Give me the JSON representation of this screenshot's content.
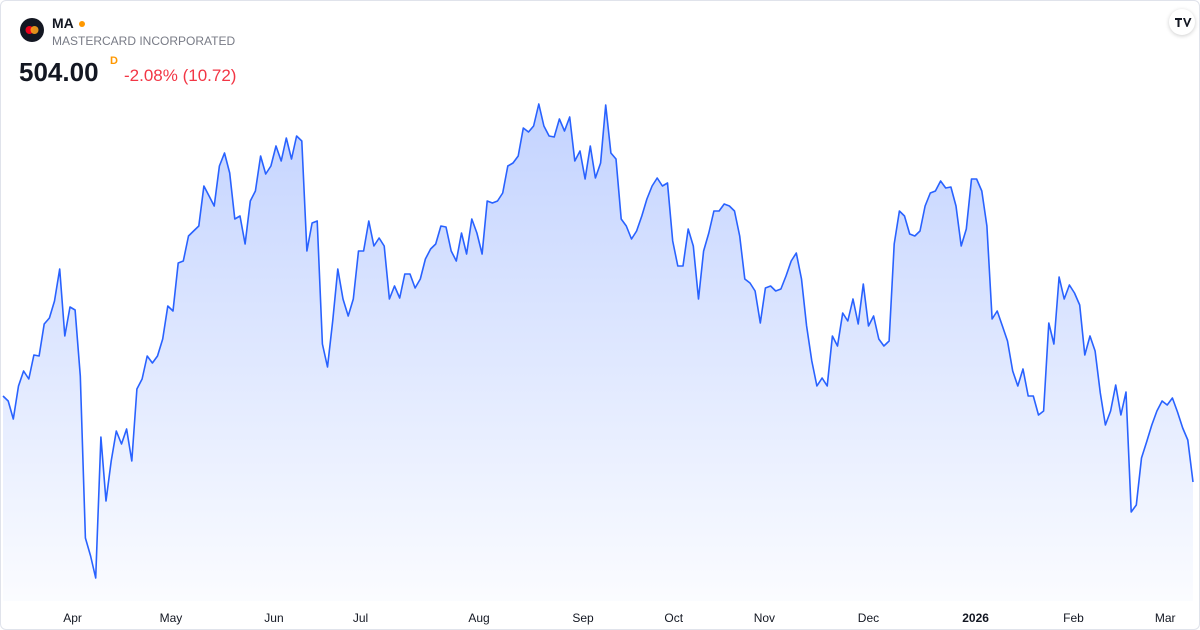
{
  "header": {
    "ticker": "MA",
    "name": "MASTERCARD INCORPORATED",
    "price": "504.00",
    "price_flag": "D",
    "change": "-2.08% (10.72)"
  },
  "chart_data": {
    "type": "area",
    "color": "#2962ff",
    "ylim": [
      474.25,
      624.25
    ],
    "xticks": [
      {
        "value": 13.5,
        "label": "Apr"
      },
      {
        "value": 32.6,
        "label": "May"
      },
      {
        "value": 52.6,
        "label": "Jun"
      },
      {
        "value": 69.4,
        "label": "Jul"
      },
      {
        "value": 92.4,
        "label": "Aug"
      },
      {
        "value": 112.6,
        "label": "Sep"
      },
      {
        "value": 130.2,
        "label": "Oct"
      },
      {
        "value": 147.8,
        "label": "Nov"
      },
      {
        "value": 168,
        "label": "Dec"
      },
      {
        "value": 188.8,
        "label": "2026"
      },
      {
        "value": 207.8,
        "label": "Feb"
      },
      {
        "value": 225.6,
        "label": "Mar"
      }
    ],
    "values": [
      525.5,
      524.25,
      519.75,
      528,
      531.75,
      529.75,
      535.75,
      535.5,
      543.5,
      545,
      549.25,
      557.25,
      540.5,
      547.75,
      547,
      530.5,
      490,
      485.5,
      480,
      515.25,
      499.25,
      509.25,
      516.75,
      513.5,
      517.25,
      509.25,
      527.25,
      529.75,
      535.5,
      533.75,
      535.5,
      539.75,
      548,
      546.75,
      558.75,
      559.25,
      565.5,
      566.75,
      568,
      578,
      575.5,
      573,
      583,
      586.25,
      581.25,
      569.75,
      570.5,
      563.5,
      574.25,
      576.75,
      585.5,
      581,
      583,
      588,
      584.25,
      590,
      584.75,
      590.5,
      589.25,
      561.75,
      568.75,
      569.25,
      538.5,
      532.75,
      544.25,
      557.25,
      549.75,
      545.5,
      549.75,
      561.75,
      561.75,
      569.25,
      563,
      565,
      563,
      549.75,
      553,
      550,
      556,
      556,
      552.5,
      554.75,
      559.75,
      562.25,
      563.5,
      568,
      567.75,
      561.75,
      559.25,
      566.25,
      561,
      569.75,
      566.25,
      561,
      574.25,
      573.75,
      574.25,
      576.25,
      583,
      583.75,
      585.5,
      592.5,
      591.5,
      593,
      598.5,
      593,
      590.5,
      590.25,
      594.75,
      591.75,
      595.25,
      584.25,
      586.75,
      579.75,
      588,
      580,
      583.75,
      598.25,
      586.25,
      584.75,
      569.75,
      568,
      564.75,
      566.75,
      570.5,
      574.75,
      578,
      580,
      578,
      578.75,
      564.25,
      558,
      558,
      567.25,
      563,
      549.75,
      561.75,
      566.25,
      571.75,
      571.75,
      573.5,
      573,
      571.75,
      565.5,
      554.75,
      553.75,
      551.75,
      543.75,
      552.5,
      553,
      551.75,
      552.25,
      555.5,
      559.25,
      561.25,
      554.75,
      543,
      534.25,
      528,
      530,
      528,
      540.5,
      538,
      546.25,
      544.25,
      549.75,
      543.5,
      553.5,
      543,
      545.5,
      539.75,
      538,
      539.25,
      563.5,
      571.75,
      570.5,
      566,
      565.5,
      566.75,
      573,
      576.25,
      576.75,
      579.25,
      577.5,
      577.75,
      573,
      563,
      567.25,
      579.75,
      579.75,
      576.75,
      568,
      544.75,
      546.75,
      543,
      539.25,
      531.75,
      528,
      532.25,
      525.5,
      525.5,
      520.75,
      521.75,
      543.75,
      538.5,
      555.25,
      549.75,
      553.25,
      551.25,
      548.25,
      535.75,
      540.5,
      536.75,
      526.25,
      518.25,
      521.75,
      528.25,
      520.75,
      526.5,
      496.5,
      498.25,
      510,
      514,
      518.25,
      521.75,
      524.25,
      523.25,
      525,
      521.5,
      517.5,
      514.5,
      504
    ]
  }
}
